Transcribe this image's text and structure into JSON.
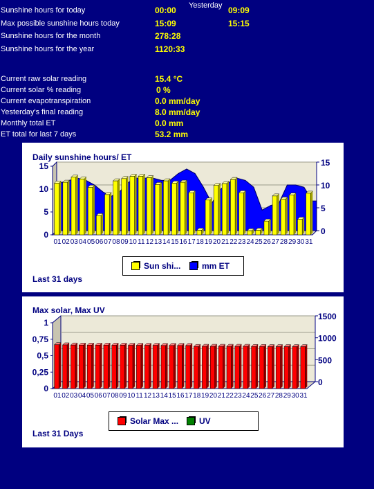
{
  "stats": [
    {
      "label": "Sunshine hours for today",
      "value": "00:00",
      "value2": "09:09"
    },
    {
      "label": "Max possible sunshine hours today",
      "value": "15:09",
      "value2": "15:15"
    },
    {
      "label": "Sunshine hours for the month",
      "value": "278:28"
    },
    {
      "label": "Sunshine hours for the year",
      "value": "1120:33"
    }
  ],
  "yesterday_label": "Yesterday",
  "readings": [
    {
      "label": "Current raw solar reading",
      "value": "15.4 °C"
    },
    {
      "label": "Current solar % reading",
      "value": "0 %"
    },
    {
      "label": "Current evapotranspiration",
      "value": "0.0 mm/day"
    },
    {
      "label": "Yesterday's final reading",
      "value": "8.0 mm/day"
    },
    {
      "label": "Monthly total ET",
      "value": "0.0 mm"
    },
    {
      "label": "ET total for last 7 days",
      "value": "53.2 mm"
    }
  ],
  "colors": {
    "background": "#000080",
    "bar_yellow": "#ffff00",
    "area_blue": "#0000ff",
    "bar_red": "#ff0000",
    "uv_green": "#008000",
    "chart_bg": "#ece9d8"
  },
  "chart_data": [
    {
      "type": "bar",
      "title": "Daily sunshine hours/ ET",
      "footer": "Last 31 days",
      "categories": [
        "01",
        "02",
        "03",
        "04",
        "05",
        "06",
        "07",
        "08",
        "09",
        "10",
        "11",
        "12",
        "13",
        "14",
        "15",
        "16",
        "17",
        "18",
        "19",
        "20",
        "21",
        "22",
        "23",
        "24",
        "25",
        "26",
        "27",
        "28",
        "29",
        "30",
        "31"
      ],
      "series": [
        {
          "name": "Sun shi...",
          "values": [
            11.3,
            11.5,
            12.6,
            12.2,
            10.4,
            4.2,
            8.8,
            11.8,
            12.3,
            12.8,
            12.8,
            12.5,
            11.0,
            11.8,
            11.3,
            11.5,
            9.2,
            1.0,
            7.6,
            10.8,
            11.2,
            12.1,
            9.2,
            0.9,
            1.0,
            3.0,
            8.5,
            7.8,
            8.7,
            3.4,
            9.1
          ],
          "axis": "left"
        },
        {
          "name": "mm ET",
          "values": [
            10.5,
            11.0,
            11.5,
            11.0,
            10.0,
            8.5,
            7.5,
            8.5,
            10.5,
            11.5,
            11.5,
            11.5,
            11.0,
            11.0,
            12.5,
            13.5,
            12.5,
            9.5,
            6.0,
            9.0,
            10.5,
            11.5,
            11.0,
            9.5,
            4.5,
            5.5,
            6.0,
            10.0,
            10.0,
            9.5,
            6.5
          ],
          "type": "area",
          "axis": "right"
        }
      ],
      "y_left": {
        "ticks": [
          "0",
          "5",
          "10",
          "15"
        ],
        "range": [
          0,
          15
        ]
      },
      "y_right": {
        "ticks": [
          "0",
          "5",
          "10",
          "15"
        ],
        "range": [
          0,
          15
        ]
      }
    },
    {
      "type": "bar",
      "title": "Max solar, Max UV",
      "footer": "Last 31 Days",
      "categories": [
        "01",
        "02",
        "03",
        "04",
        "05",
        "06",
        "07",
        "08",
        "09",
        "10",
        "11",
        "12",
        "13",
        "14",
        "15",
        "16",
        "17",
        "18",
        "19",
        "20",
        "21",
        "22",
        "23",
        "24",
        "25",
        "26",
        "27",
        "28",
        "29",
        "30",
        "31"
      ],
      "series": [
        {
          "name": "Solar Max ...",
          "values": [
            1000,
            995,
            992,
            990,
            990,
            990,
            990,
            988,
            988,
            985,
            985,
            985,
            985,
            982,
            982,
            982,
            980,
            960,
            962,
            962,
            962,
            962,
            962,
            962,
            958,
            958,
            955,
            955,
            955,
            955,
            955
          ],
          "axis": "right"
        },
        {
          "name": "UV",
          "values": [
            0.05,
            0.05,
            0.05,
            0.05,
            0.05,
            0.05,
            0.05,
            0.05,
            0.05,
            0.05,
            0.05,
            0.05,
            0.05,
            0.05,
            0.05,
            0.05,
            0.05,
            0.05,
            0.05,
            0.05,
            0.05,
            0.05,
            0.05,
            0.05,
            0.05,
            0.05,
            0.05,
            0.05,
            0.05,
            0.05,
            0.05
          ],
          "axis": "left"
        }
      ],
      "y_left": {
        "ticks": [
          "0",
          "0,25",
          "0,5",
          "0,75",
          "1"
        ],
        "range": [
          0,
          1
        ]
      },
      "y_right": {
        "ticks": [
          "0",
          "500",
          "1000",
          "1500"
        ],
        "range": [
          0,
          1500
        ]
      }
    }
  ]
}
